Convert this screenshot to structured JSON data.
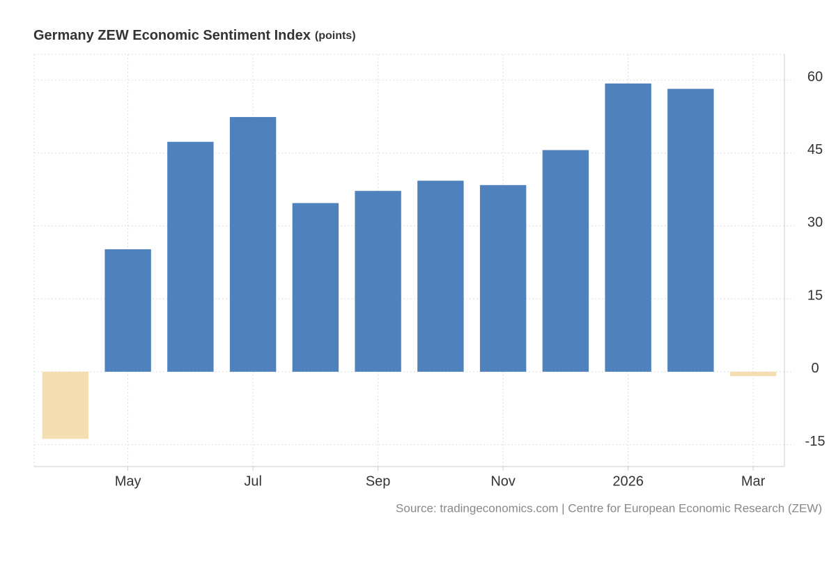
{
  "chart_data": {
    "type": "bar",
    "title": "Germany ZEW Economic Sentiment Index",
    "unit": "(points)",
    "source": "Source: tradingeconomics.com | Centre for European Economic Research (ZEW)",
    "categories": [
      null,
      "May",
      null,
      "Jul",
      null,
      "Sep",
      null,
      "Nov",
      null,
      "2026",
      null,
      "Mar"
    ],
    "values": [
      -13.8,
      25.2,
      47.3,
      52.4,
      34.7,
      37.2,
      39.3,
      38.4,
      45.6,
      59.3,
      58.2,
      -0.9
    ],
    "color": "#4f81bd",
    "negative_color": "#f3ddb1",
    "ylim": [
      -19.5,
      65.3
    ],
    "yticks": [
      -15,
      0,
      15,
      30,
      45,
      60
    ],
    "y_axis_side": "right",
    "grid": true
  }
}
